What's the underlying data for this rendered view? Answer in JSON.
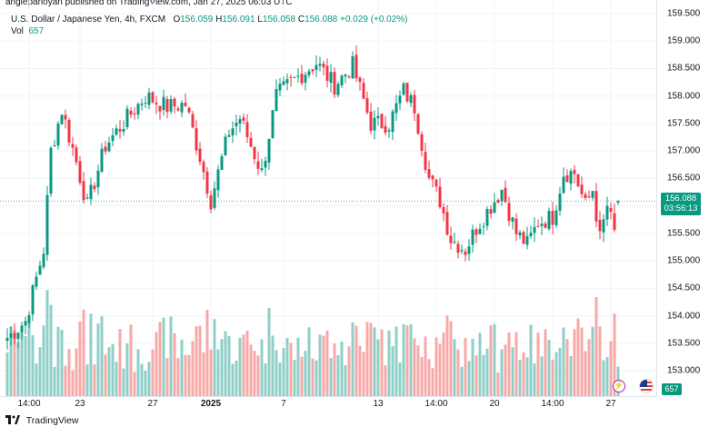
{
  "header": {
    "attribution": "anglepanoyan published on TradingView.com, Jan 27, 2025 06:03 UTC"
  },
  "legend": {
    "symbol": "U.S. Dollar / Japanese Yen, 4h, FXCM",
    "open_label": "O",
    "open": "156.059",
    "high_label": "H",
    "high": "156.091",
    "low_label": "L",
    "low": "156.058",
    "close_label": "C",
    "close": "156.088",
    "change": "+0.029 (+0.02%)",
    "vol_label": "Vol",
    "vol_value": "657"
  },
  "price_axis": {
    "ticks": [
      "159.500",
      "159.000",
      "158.500",
      "158.000",
      "157.500",
      "157.000",
      "156.500",
      "156.000",
      "155.500",
      "155.000",
      "154.500",
      "154.000",
      "153.500",
      "153.000"
    ],
    "current_price": "156.088",
    "countdown": "03:56:13",
    "volume_tag": "657"
  },
  "time_axis": {
    "ticks": [
      {
        "label": "14:00",
        "bold": false
      },
      {
        "label": "23",
        "bold": false
      },
      {
        "label": "27",
        "bold": false
      },
      {
        "label": "2025",
        "bold": true
      },
      {
        "label": "7",
        "bold": false
      },
      {
        "label": "13",
        "bold": false
      },
      {
        "label": "14:00",
        "bold": false
      },
      {
        "label": "20",
        "bold": false
      },
      {
        "label": "14:00",
        "bold": false
      },
      {
        "label": "27",
        "bold": false
      }
    ]
  },
  "footer": {
    "brand": "TradingView"
  },
  "colors": {
    "up": "#089981",
    "down": "#f23645",
    "vol_up": "#8fcfc7",
    "vol_down": "#f7a9a7",
    "grid": "#f0f3fa",
    "price_line": "#089981"
  },
  "chart_data": {
    "type": "candlestick",
    "title": "U.S. Dollar / Japanese Yen, 4h, FXCM",
    "ylim": [
      152.8,
      159.6
    ],
    "y_ticks": [
      153.0,
      153.5,
      154.0,
      154.5,
      155.0,
      155.5,
      156.0,
      156.5,
      157.0,
      157.5,
      158.0,
      158.5,
      159.0,
      159.5
    ],
    "current_price": 156.088,
    "key_levels": [
      {
        "x": 0,
        "value": 153.6
      },
      {
        "x": 5,
        "value": 153.9
      },
      {
        "x": 10,
        "value": 155.2
      },
      {
        "x": 12,
        "value": 157.0
      },
      {
        "x": 15,
        "value": 157.75
      },
      {
        "x": 19,
        "value": 156.8
      },
      {
        "x": 22,
        "value": 156.0
      },
      {
        "x": 27,
        "value": 157.1
      },
      {
        "x": 33,
        "value": 157.6
      },
      {
        "x": 38,
        "value": 158.0
      },
      {
        "x": 44,
        "value": 157.8
      },
      {
        "x": 49,
        "value": 157.85
      },
      {
        "x": 53,
        "value": 156.9
      },
      {
        "x": 56,
        "value": 156.1
      },
      {
        "x": 61,
        "value": 157.35
      },
      {
        "x": 64,
        "value": 157.6
      },
      {
        "x": 70,
        "value": 156.6
      },
      {
        "x": 74,
        "value": 158.0
      },
      {
        "x": 79,
        "value": 158.3
      },
      {
        "x": 85,
        "value": 158.6
      },
      {
        "x": 90,
        "value": 158.2
      },
      {
        "x": 95,
        "value": 158.55
      },
      {
        "x": 100,
        "value": 157.5
      },
      {
        "x": 105,
        "value": 157.5
      },
      {
        "x": 109,
        "value": 158.1
      },
      {
        "x": 112,
        "value": 157.8
      },
      {
        "x": 116,
        "value": 156.5
      },
      {
        "x": 119,
        "value": 156.1
      },
      {
        "x": 122,
        "value": 155.4
      },
      {
        "x": 126,
        "value": 155.2
      },
      {
        "x": 129,
        "value": 155.6
      },
      {
        "x": 133,
        "value": 156.0
      },
      {
        "x": 136,
        "value": 156.3
      },
      {
        "x": 140,
        "value": 155.5
      },
      {
        "x": 143,
        "value": 155.3
      },
      {
        "x": 146,
        "value": 155.7
      },
      {
        "x": 150,
        "value": 155.8
      },
      {
        "x": 153,
        "value": 156.6
      },
      {
        "x": 156,
        "value": 156.6
      },
      {
        "x": 159,
        "value": 156.0
      },
      {
        "x": 161,
        "value": 156.3
      },
      {
        "x": 163,
        "value": 155.4
      },
      {
        "x": 165,
        "value": 156.0
      },
      {
        "x": 167,
        "value": 155.5
      },
      {
        "x": 168,
        "value": 156.088
      }
    ],
    "volume_range": [
      200,
      1600
    ],
    "x_ticks": [
      {
        "label": "14:00",
        "x": 6
      },
      {
        "label": "23",
        "x": 20
      },
      {
        "label": "27",
        "x": 40
      },
      {
        "label": "2025",
        "x": 56
      },
      {
        "label": "7",
        "x": 76
      },
      {
        "label": "13",
        "x": 102
      },
      {
        "label": "14:00",
        "x": 118
      },
      {
        "label": "20",
        "x": 134
      },
      {
        "label": "14:00",
        "x": 150
      },
      {
        "label": "27",
        "x": 166
      }
    ]
  }
}
